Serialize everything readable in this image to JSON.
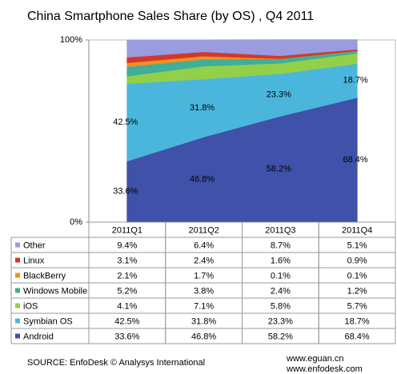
{
  "chart_data": {
    "type": "stacked-area",
    "title": "China Smartphone Sales Share (by OS) , Q4 2011",
    "categories": [
      "2011Q1",
      "2011Q2",
      "2011Q3",
      "2011Q4"
    ],
    "ylim": [
      0,
      100
    ],
    "yticks": [
      {
        "value": 0,
        "label": "0%"
      },
      {
        "value": 100,
        "label": "100%"
      }
    ],
    "series": [
      {
        "name": "Android",
        "color": "#3f51a8",
        "values": [
          33.6,
          46.8,
          58.2,
          68.4
        ],
        "value_labels": [
          "33.6%",
          "46.8%",
          "58.2%",
          "68.4%"
        ],
        "labeled": true
      },
      {
        "name": "Symbian OS",
        "color": "#4bb6dc",
        "values": [
          42.5,
          31.8,
          23.3,
          18.7
        ],
        "value_labels": [
          "42.5%",
          "31.8%",
          "23.3%",
          "18.7%"
        ],
        "labeled": true
      },
      {
        "name": "iOS",
        "color": "#92d04a",
        "values": [
          4.1,
          7.1,
          5.8,
          5.7
        ],
        "value_labels": [
          "4.1%",
          "7.1%",
          "5.8%",
          "5.7%"
        ],
        "labeled": false
      },
      {
        "name": "Windows Mobile",
        "color": "#3fae9a",
        "values": [
          5.2,
          3.8,
          2.4,
          1.2
        ],
        "value_labels": [
          "5.2%",
          "3.8%",
          "2.4%",
          "1.2%"
        ],
        "labeled": false
      },
      {
        "name": "BlackBerry",
        "color": "#f39020",
        "values": [
          2.1,
          1.7,
          0.1,
          0.1
        ],
        "value_labels": [
          "2.1%",
          "1.7%",
          "0.1%",
          "0.1%"
        ],
        "labeled": false
      },
      {
        "name": "Linux",
        "color": "#d0392a",
        "values": [
          3.1,
          2.4,
          1.6,
          0.9
        ],
        "value_labels": [
          "3.1%",
          "2.4%",
          "1.6%",
          "0.9%"
        ],
        "labeled": false
      },
      {
        "name": "Other",
        "color": "#9b9be0",
        "values": [
          9.4,
          6.4,
          8.7,
          5.1
        ],
        "value_labels": [
          "9.4%",
          "6.4%",
          "8.7%",
          "5.1%"
        ],
        "labeled": false
      }
    ],
    "source": "SOURCE: EnfoDesk © Analysys International",
    "credits": [
      "www.eguan.cn",
      "www.enfodesk.com"
    ]
  }
}
